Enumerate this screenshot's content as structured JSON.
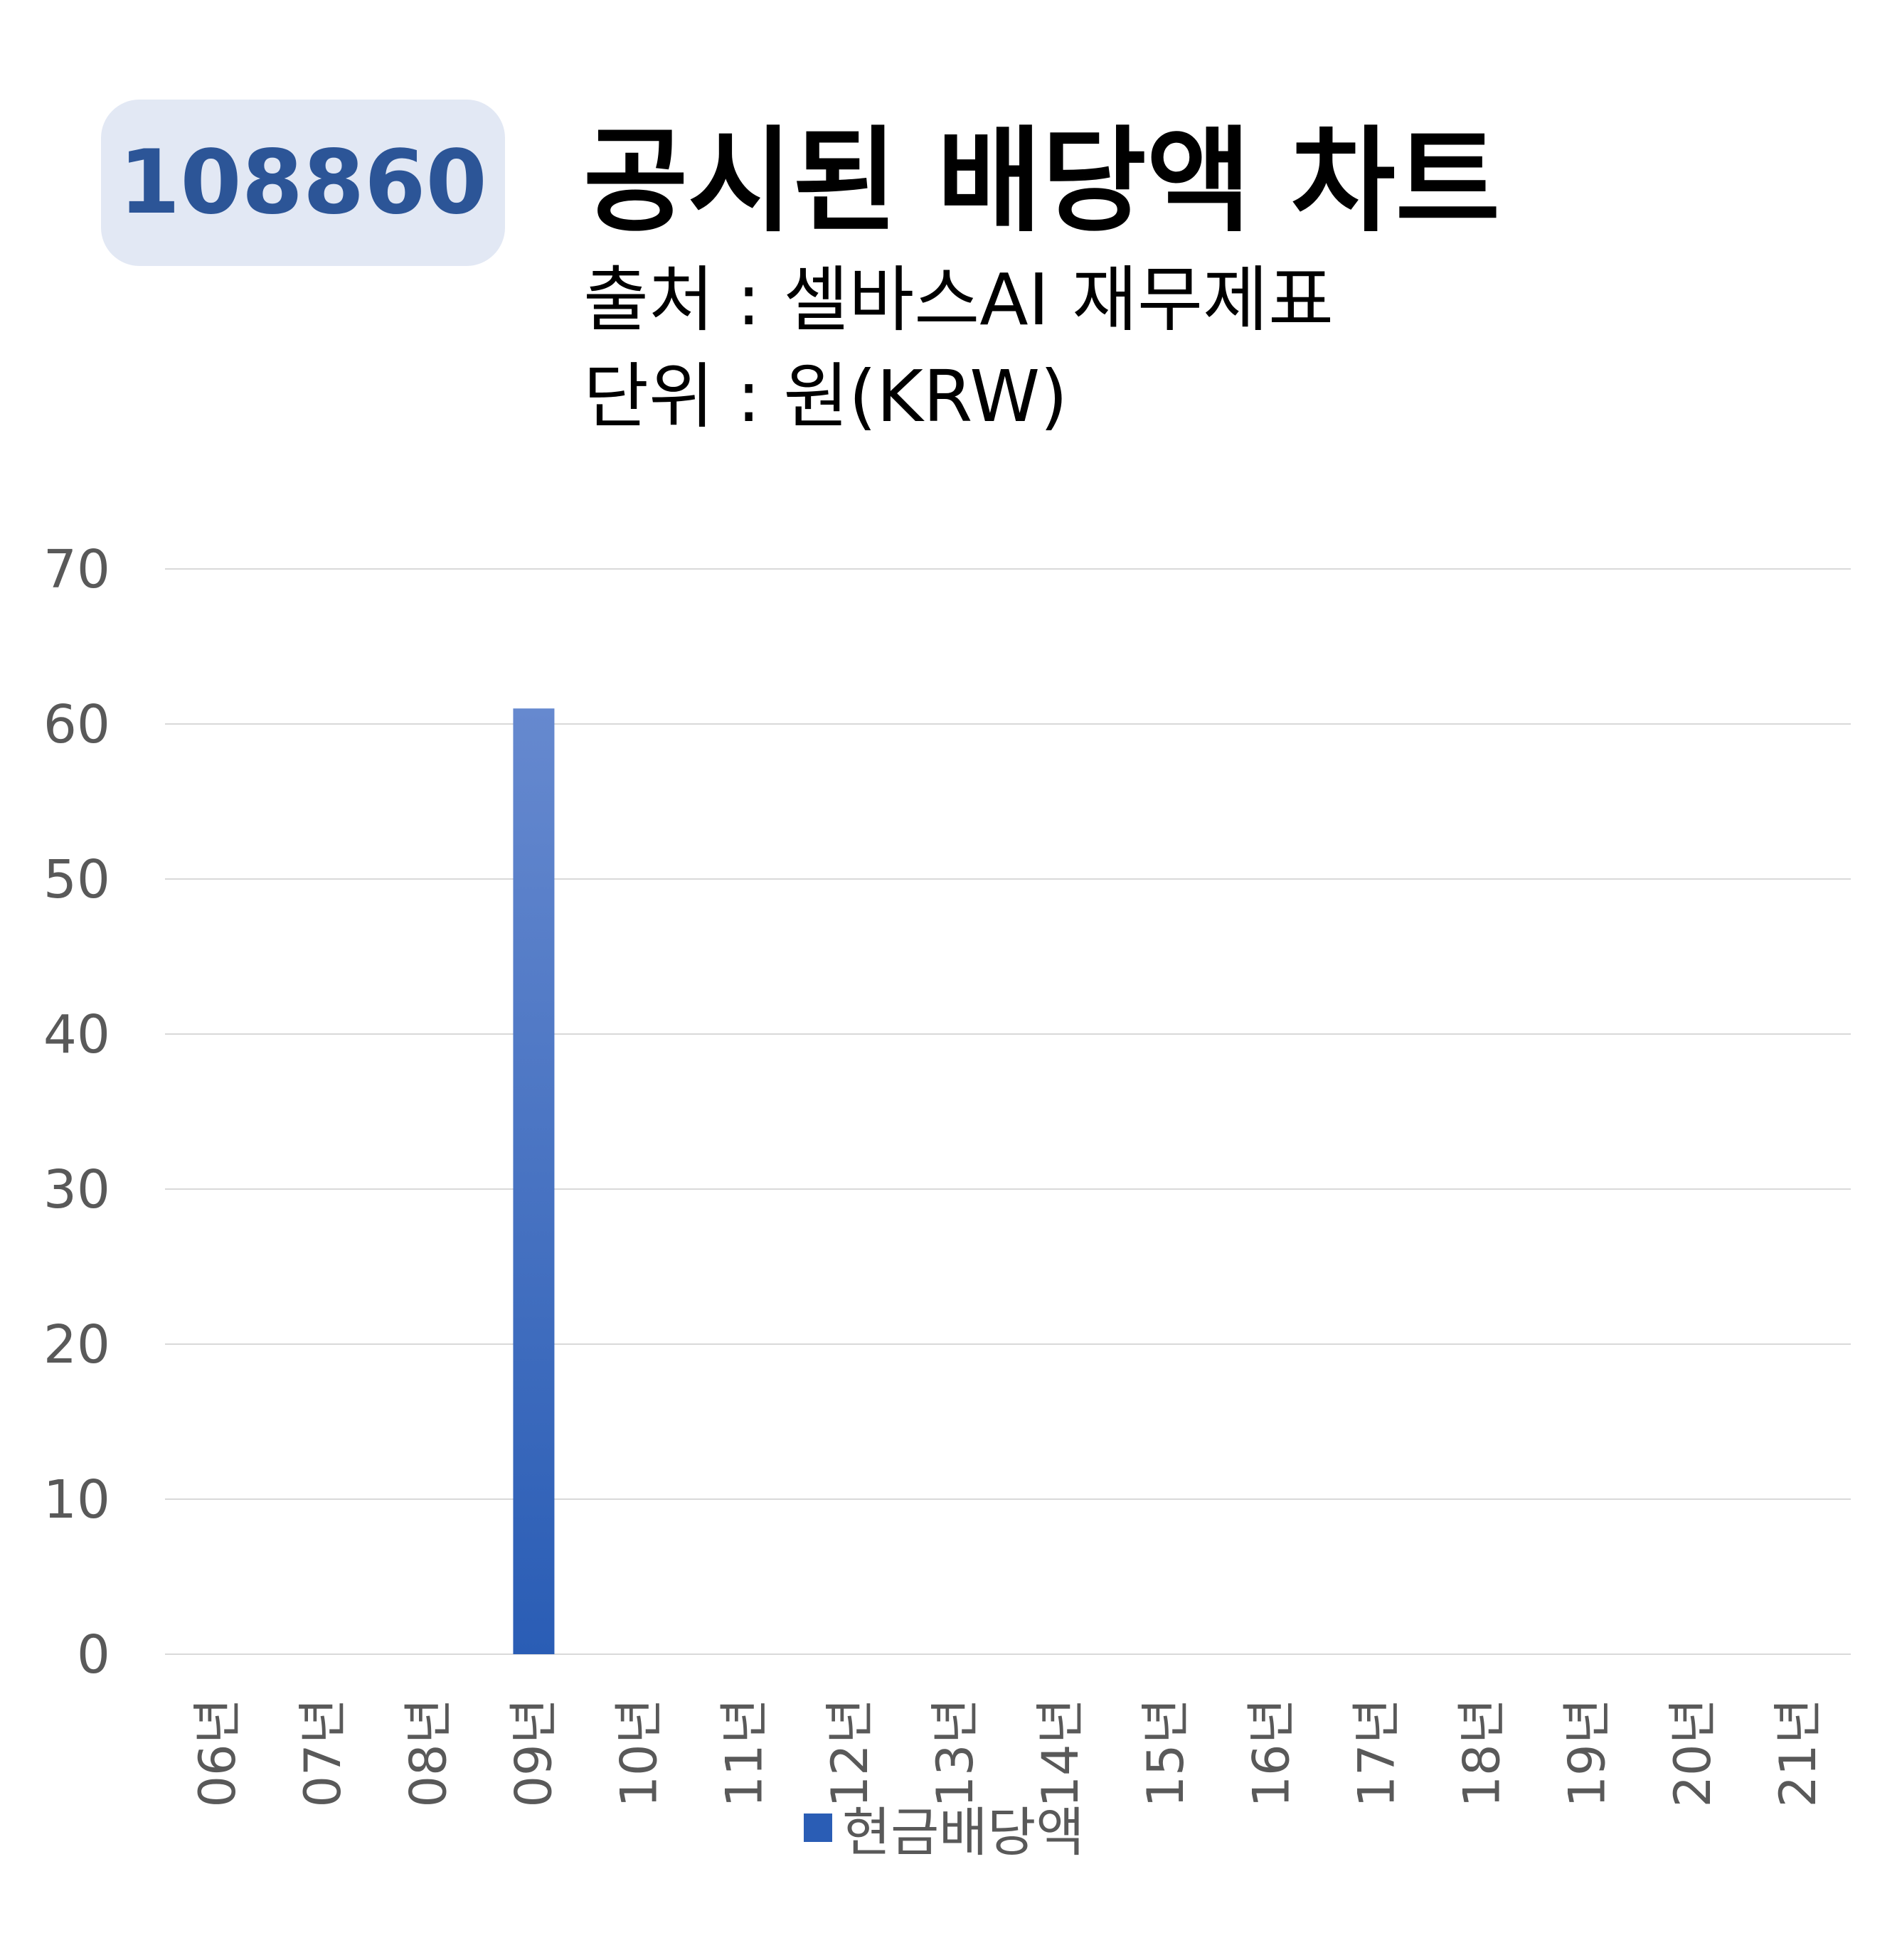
{
  "badge": {
    "code": "108860"
  },
  "header": {
    "title": "공시된 배당액 차트",
    "source": "출처 : 셀바스AI 재무제표",
    "unit": "단위 : 원(KRW)"
  },
  "colors": {
    "bar_top": "#6689cf",
    "bar_bottom": "#2a5db5",
    "grid": "#d9d9d9",
    "tick_text": "#595959",
    "badge_bg": "#e2e8f4",
    "badge_text": "#2c5597"
  },
  "chart_data": {
    "type": "bar",
    "categories": [
      "06년",
      "07년",
      "08년",
      "09년",
      "10년",
      "11년",
      "12년",
      "13년",
      "14년",
      "15년",
      "16년",
      "17년",
      "18년",
      "19년",
      "20년",
      "21년"
    ],
    "series": [
      {
        "name": "현금배당액",
        "values": [
          0,
          0,
          0,
          61,
          0,
          0,
          0,
          0,
          0,
          0,
          0,
          0,
          0,
          0,
          0,
          0
        ]
      }
    ],
    "ylim": [
      0,
      70
    ],
    "yticks": [
      0,
      10,
      20,
      30,
      40,
      50,
      60,
      70
    ],
    "grid": true,
    "legend_position": "bottom",
    "xlabel": "",
    "ylabel": ""
  }
}
